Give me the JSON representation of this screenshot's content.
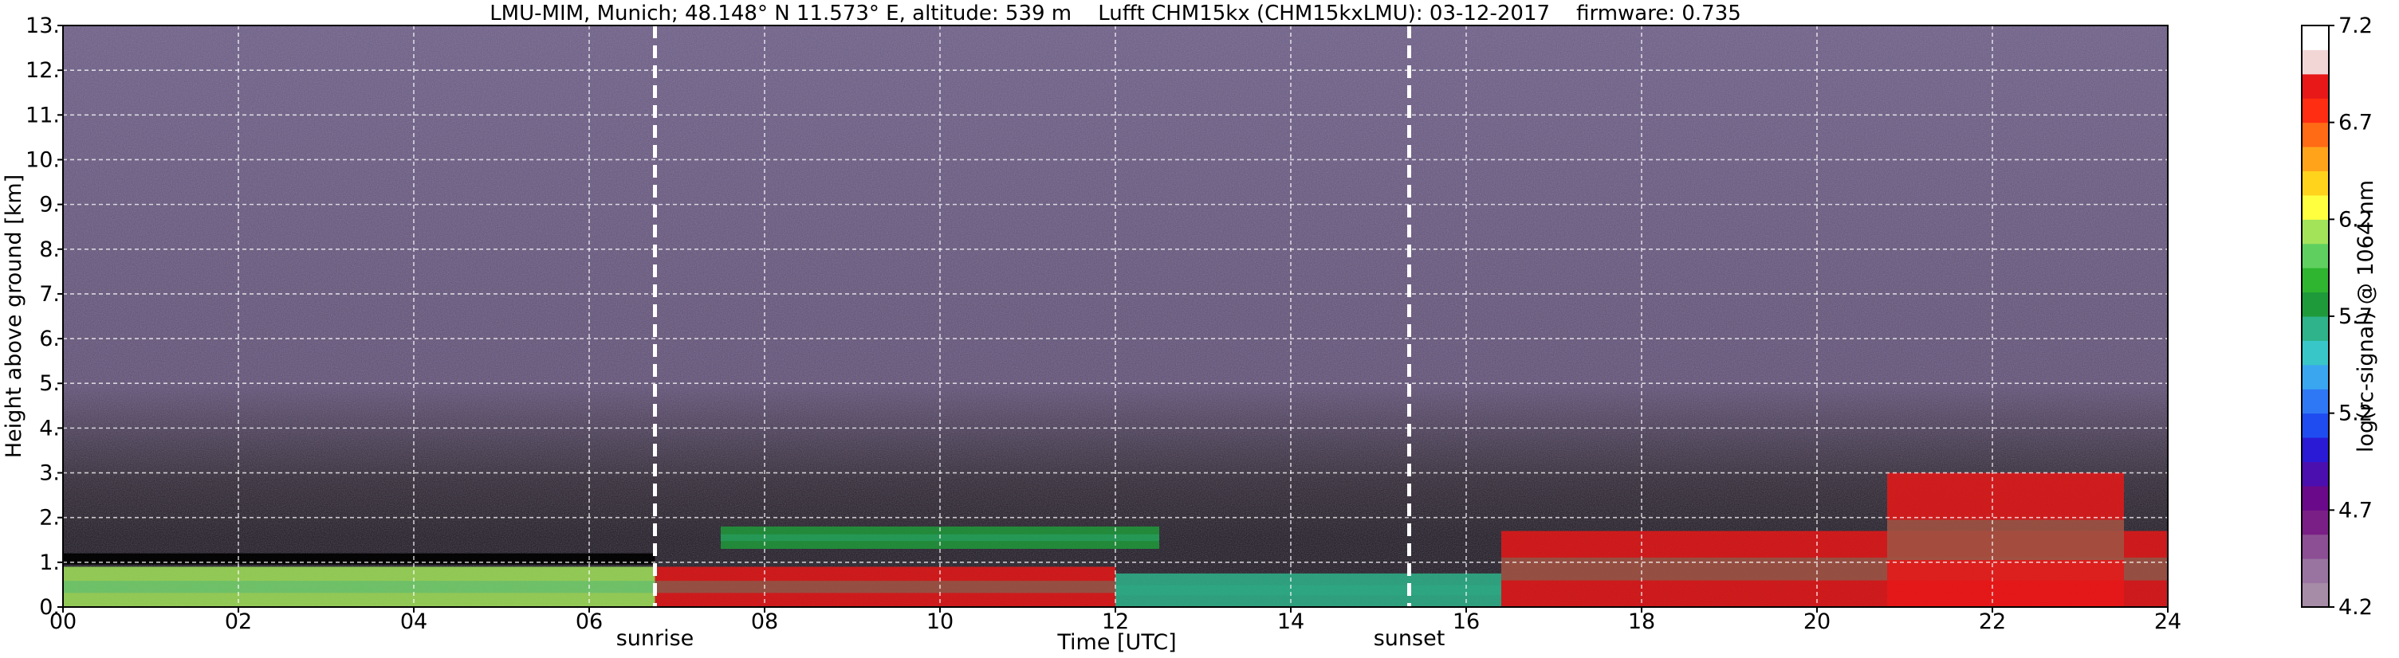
{
  "chart_data": {
    "type": "heatmap",
    "title": "LMU-MIM, Munich; 48.148° N 11.573° E, altitude: 539 m    Lufft CHM15kx (CHM15kxLMU): 03-12-2017    firmware: 0.735",
    "xlabel": "Time [UTC]",
    "ylabel": "Height above ground [km]",
    "xlim": [
      0,
      24
    ],
    "ylim": [
      0,
      13
    ],
    "x_ticks": [
      "00",
      "02",
      "04",
      "06",
      "08",
      "10",
      "12",
      "14",
      "16",
      "18",
      "20",
      "22",
      "24"
    ],
    "y_ticks": [
      "0.",
      "1.",
      "2.",
      "3.",
      "4.",
      "5.",
      "6.",
      "7.",
      "8.",
      "9.",
      "10.",
      "11.",
      "12.",
      "13."
    ],
    "grid": true,
    "markers": [
      {
        "label": "sunrise",
        "x": 6.75
      },
      {
        "label": "sunset",
        "x": 15.35
      }
    ],
    "colorbar": {
      "label": "log(rc-signal) @ 1064 nm",
      "range": [
        4.2,
        7.2
      ],
      "tick_labels": [
        "4.2",
        "4.7",
        "5.2",
        "5.7",
        "6.2",
        "6.7",
        "7.2"
      ],
      "colors": [
        "#a78ca8",
        "#9a74a0",
        "#8c4f94",
        "#7a1f86",
        "#6a0a8a",
        "#4b0fb0",
        "#2a1ad6",
        "#1f4cf0",
        "#2f78f5",
        "#3aa6f0",
        "#39c6c8",
        "#2eb38a",
        "#1f9a3a",
        "#2fb52f",
        "#5fd05f",
        "#a2e35a",
        "#ffff40",
        "#ffd21c",
        "#ffa31a",
        "#ff6a14",
        "#ff2d12",
        "#e81818",
        "#f2d6d6",
        "#ffffff"
      ]
    },
    "layers": [
      {
        "time": [
          0,
          6.75
        ],
        "base_km": 0.0,
        "top_km": 0.9,
        "signal": "5.3-6.2"
      },
      {
        "time": [
          0,
          6.75
        ],
        "base_km": 0.95,
        "top_km": 1.2,
        "signal": "7.2"
      },
      {
        "time": [
          6.75,
          12.0
        ],
        "base_km": 0.0,
        "top_km": 0.9,
        "signal": "5.5-6.9"
      },
      {
        "time": [
          7.5,
          12.5
        ],
        "base_km": 1.3,
        "top_km": 1.8,
        "signal": "5.3-5.7"
      },
      {
        "time": [
          12.0,
          16.4
        ],
        "base_km": 0.0,
        "top_km": 0.75,
        "signal": "5.4-5.6"
      },
      {
        "time": [
          16.4,
          24
        ],
        "base_km": 0.0,
        "top_km": 1.7,
        "signal": "5.5-7.0"
      },
      {
        "time": [
          20.8,
          23.5
        ],
        "base_km": 0.0,
        "top_km": 3.0,
        "signal": "5.5-7.0"
      }
    ]
  }
}
